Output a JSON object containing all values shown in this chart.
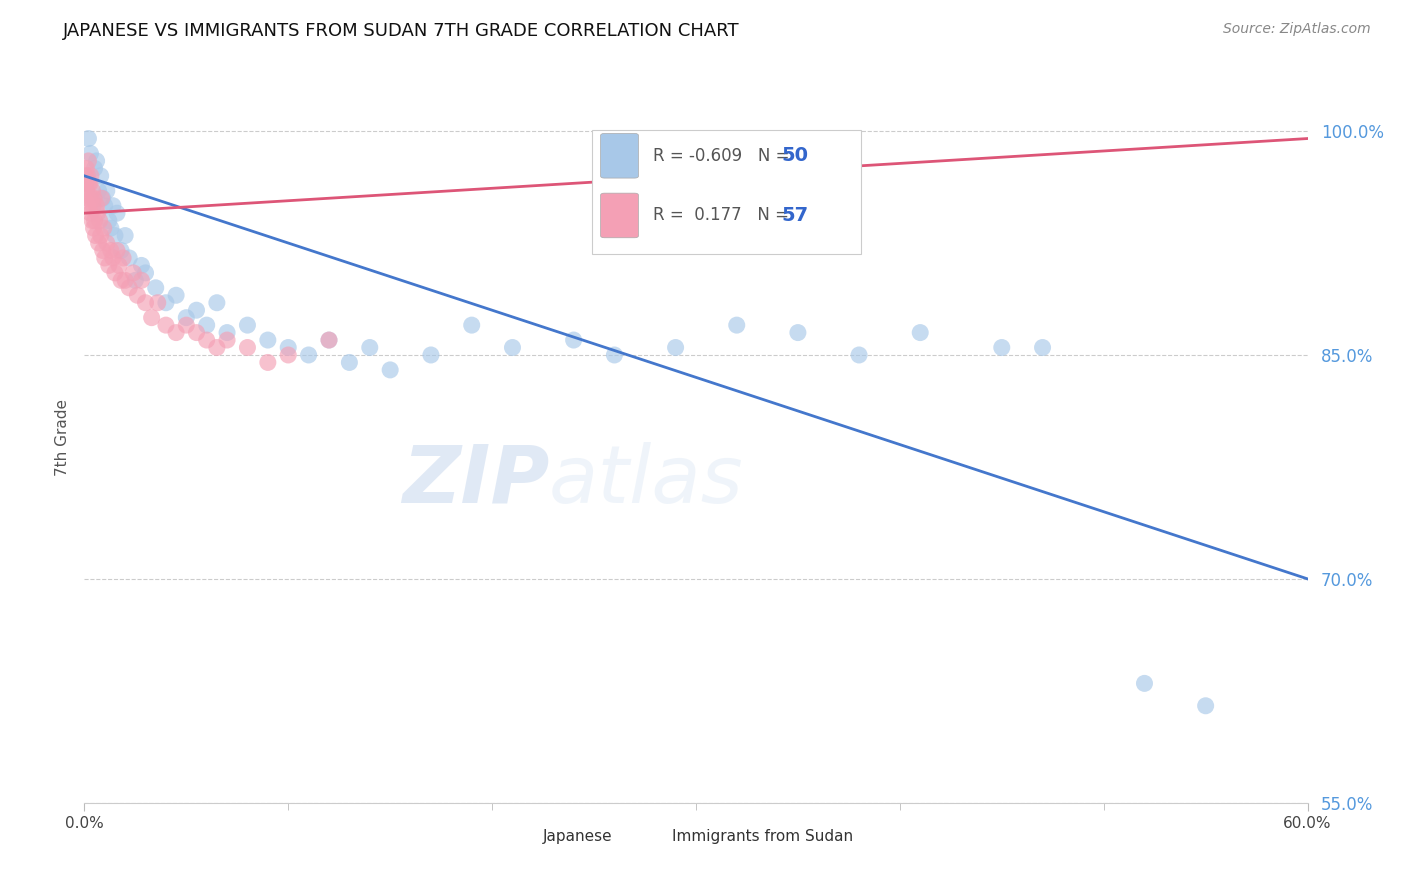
{
  "title": "JAPANESE VS IMMIGRANTS FROM SUDAN 7TH GRADE CORRELATION CHART",
  "source": "Source: ZipAtlas.com",
  "ylabel": "7th Grade",
  "xlim": [
    0.0,
    60.0
  ],
  "ylim": [
    57.0,
    104.0
  ],
  "y_ticks": [
    55.0,
    70.0,
    85.0,
    100.0
  ],
  "x_minor_ticks": [
    10.0,
    20.0,
    30.0,
    40.0,
    50.0
  ],
  "R_blue": -0.609,
  "N_blue": 50,
  "R_pink": 0.177,
  "N_pink": 57,
  "blue_scatter_color": "#a8c8e8",
  "pink_scatter_color": "#f4a0b5",
  "blue_line_color": "#4477cc",
  "pink_line_color": "#dd5577",
  "watermark_zip": "ZIP",
  "watermark_atlas": "atlas",
  "blue_line_x0": 0.0,
  "blue_line_y0": 97.0,
  "blue_line_x1": 60.0,
  "blue_line_y1": 70.0,
  "pink_line_x0": 0.0,
  "pink_line_y0": 94.5,
  "pink_line_x1": 60.0,
  "pink_line_y1": 99.5,
  "blue_x": [
    0.2,
    0.3,
    0.5,
    0.6,
    0.7,
    0.8,
    0.9,
    1.0,
    1.1,
    1.2,
    1.3,
    1.4,
    1.5,
    1.6,
    1.8,
    2.0,
    2.2,
    2.5,
    2.8,
    3.0,
    3.5,
    4.0,
    4.5,
    5.0,
    5.5,
    6.0,
    6.5,
    7.0,
    8.0,
    9.0,
    10.0,
    11.0,
    12.0,
    13.0,
    14.0,
    15.0,
    17.0,
    19.0,
    21.0,
    24.0,
    26.0,
    29.0,
    32.0,
    35.0,
    38.0,
    41.0,
    45.0,
    47.0,
    52.0,
    55.0
  ],
  "blue_y": [
    99.5,
    98.5,
    97.5,
    98.0,
    96.0,
    97.0,
    95.5,
    95.0,
    96.0,
    94.0,
    93.5,
    95.0,
    93.0,
    94.5,
    92.0,
    93.0,
    91.5,
    90.0,
    91.0,
    90.5,
    89.5,
    88.5,
    89.0,
    87.5,
    88.0,
    87.0,
    88.5,
    86.5,
    87.0,
    86.0,
    85.5,
    85.0,
    86.0,
    84.5,
    85.5,
    84.0,
    85.0,
    87.0,
    85.5,
    86.0,
    85.0,
    85.5,
    87.0,
    86.5,
    85.0,
    86.5,
    85.5,
    85.5,
    63.0,
    61.5
  ],
  "pink_x": [
    0.05,
    0.08,
    0.1,
    0.12,
    0.15,
    0.18,
    0.2,
    0.22,
    0.25,
    0.28,
    0.3,
    0.32,
    0.35,
    0.38,
    0.4,
    0.42,
    0.45,
    0.48,
    0.5,
    0.55,
    0.6,
    0.65,
    0.7,
    0.75,
    0.8,
    0.85,
    0.9,
    0.95,
    1.0,
    1.1,
    1.2,
    1.3,
    1.4,
    1.5,
    1.6,
    1.7,
    1.8,
    1.9,
    2.0,
    2.2,
    2.4,
    2.6,
    2.8,
    3.0,
    3.3,
    3.6,
    4.0,
    4.5,
    5.0,
    5.5,
    6.0,
    6.5,
    7.0,
    8.0,
    9.0,
    10.0,
    12.0
  ],
  "pink_y": [
    97.0,
    96.5,
    97.5,
    96.0,
    97.0,
    95.5,
    98.0,
    96.5,
    95.0,
    96.5,
    94.5,
    97.0,
    95.5,
    94.0,
    96.0,
    95.0,
    93.5,
    95.5,
    94.0,
    93.0,
    95.0,
    94.5,
    92.5,
    94.0,
    93.0,
    95.5,
    92.0,
    93.5,
    91.5,
    92.5,
    91.0,
    92.0,
    91.5,
    90.5,
    92.0,
    91.0,
    90.0,
    91.5,
    90.0,
    89.5,
    90.5,
    89.0,
    90.0,
    88.5,
    87.5,
    88.5,
    87.0,
    86.5,
    87.0,
    86.5,
    86.0,
    85.5,
    86.0,
    85.5,
    84.5,
    85.0,
    86.0
  ]
}
